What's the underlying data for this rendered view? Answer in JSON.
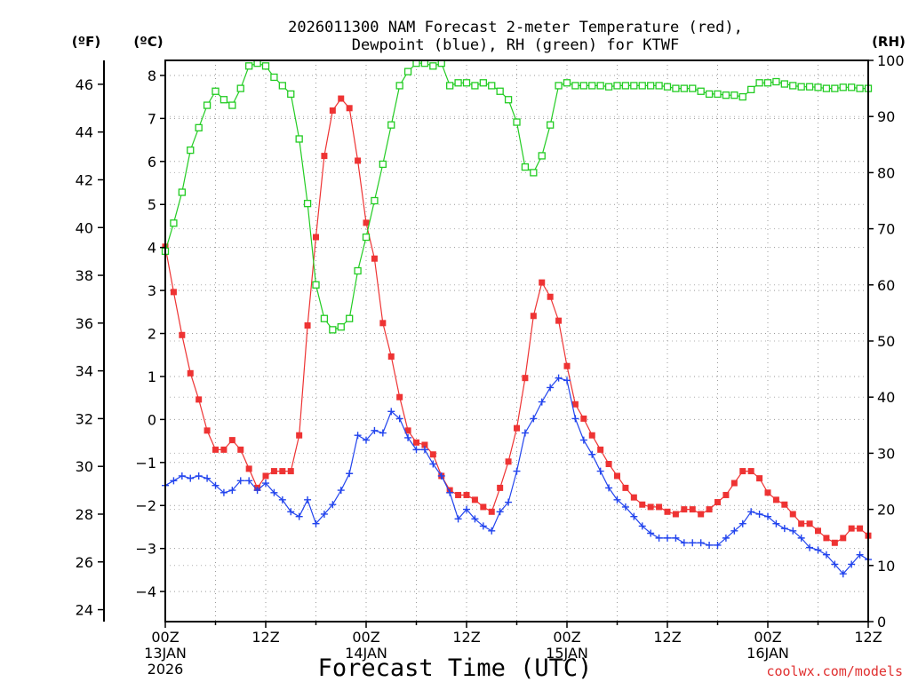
{
  "chart_data": {
    "type": "line",
    "title": {
      "line1": "2026011300 NAM Forecast 2-meter Temperature (red),",
      "line2": "Dewpoint (blue), RH (green) for KTWF"
    },
    "axes": {
      "left_f": {
        "label": "(ºF)",
        "ylim": [
          23.5,
          47
        ],
        "ticks": [
          "24",
          "26",
          "28",
          "30",
          "32",
          "34",
          "36",
          "38",
          "40",
          "42",
          "44",
          "46"
        ]
      },
      "left_c": {
        "label": "(ºC)",
        "ylim": [
          -4.7,
          8.35
        ],
        "ticks": [
          "-4",
          "-3",
          "-2",
          "-1",
          "0",
          "1",
          "2",
          "3",
          "4",
          "5",
          "6",
          "7",
          "8"
        ]
      },
      "right_rh": {
        "label": "(RH)",
        "ylim": [
          0,
          100
        ],
        "ticks": [
          "0",
          "10",
          "20",
          "30",
          "40",
          "50",
          "60",
          "70",
          "80",
          "90",
          "100"
        ]
      },
      "x": {
        "xlabel": "Forecast Time (UTC)",
        "range_hours": [
          0,
          84
        ],
        "ticks": [
          {
            "label": "00Z",
            "sub": "13JAN",
            "sub2": "2026"
          },
          {
            "label": "12Z",
            "sub": "",
            "sub2": ""
          },
          {
            "label": "00Z",
            "sub": "14JAN",
            "sub2": ""
          },
          {
            "label": "12Z",
            "sub": "",
            "sub2": ""
          },
          {
            "label": "00Z",
            "sub": "15JAN",
            "sub2": ""
          },
          {
            "label": "12Z",
            "sub": "",
            "sub2": ""
          },
          {
            "label": "00Z",
            "sub": "16JAN",
            "sub2": ""
          },
          {
            "label": "12Z",
            "sub": "",
            "sub2": ""
          }
        ]
      }
    },
    "grid": true,
    "series": [
      {
        "name": "Temperature",
        "units": "F",
        "color": "#ee3333",
        "marker": "filled-square",
        "x": [
          0,
          1,
          2,
          3,
          4,
          5,
          6,
          7,
          8,
          9,
          10,
          11,
          12,
          13,
          14,
          15,
          16,
          17,
          18,
          19,
          20,
          21,
          22,
          23,
          24,
          25,
          26,
          27,
          28,
          29,
          30,
          31,
          32,
          33,
          34,
          35,
          36,
          37,
          38,
          39,
          40,
          41,
          42,
          43,
          44,
          45,
          46,
          47,
          48,
          49,
          50,
          51,
          52,
          53,
          54,
          55,
          56,
          57,
          58,
          59,
          60,
          61,
          62,
          63,
          64,
          65,
          66,
          67,
          68,
          69,
          70,
          71,
          72,
          73,
          74,
          75,
          76,
          77,
          78,
          79,
          80,
          81,
          82,
          83,
          84
        ],
        "values": [
          39.2,
          37.3,
          35.5,
          33.9,
          32.8,
          31.5,
          30.7,
          30.7,
          31.1,
          30.7,
          29.9,
          29.1,
          29.6,
          29.8,
          29.8,
          29.8,
          31.3,
          35.9,
          39.6,
          43.0,
          44.9,
          45.4,
          45.0,
          42.8,
          40.2,
          38.7,
          36.0,
          34.6,
          32.9,
          31.5,
          31.0,
          30.9,
          30.5,
          29.6,
          29.0,
          28.8,
          28.8,
          28.6,
          28.3,
          28.1,
          29.1,
          30.2,
          31.6,
          33.7,
          36.3,
          37.7,
          37.1,
          36.1,
          34.2,
          32.6,
          32.0,
          31.3,
          30.7,
          30.1,
          29.6,
          29.1,
          28.7,
          28.4,
          28.3,
          28.3,
          28.1,
          28.0,
          28.2,
          28.2,
          28.0,
          28.2,
          28.5,
          28.8,
          29.3,
          29.8,
          29.8,
          29.5,
          28.9,
          28.6,
          28.4,
          28.0,
          27.6,
          27.6,
          27.3,
          27.0,
          26.8,
          27.0,
          27.4,
          27.4,
          27.1
        ]
      },
      {
        "name": "Dewpoint",
        "units": "F",
        "color": "#2244ee",
        "marker": "plus",
        "x": [
          0,
          1,
          2,
          3,
          4,
          5,
          6,
          7,
          8,
          9,
          10,
          11,
          12,
          13,
          14,
          15,
          16,
          17,
          18,
          19,
          20,
          21,
          22,
          23,
          24,
          25,
          26,
          27,
          28,
          29,
          30,
          31,
          32,
          33,
          34,
          35,
          36,
          37,
          38,
          39,
          40,
          41,
          42,
          43,
          44,
          45,
          46,
          47,
          48,
          49,
          50,
          51,
          52,
          53,
          54,
          55,
          56,
          57,
          58,
          59,
          60,
          61,
          62,
          63,
          64,
          65,
          66,
          67,
          68,
          69,
          70,
          71,
          72,
          73,
          74,
          75,
          76,
          77,
          78,
          79,
          80,
          81,
          82,
          83,
          84
        ],
        "values": [
          29.2,
          29.4,
          29.6,
          29.5,
          29.6,
          29.5,
          29.2,
          28.9,
          29.0,
          29.4,
          29.4,
          29.0,
          29.3,
          28.9,
          28.6,
          28.1,
          27.9,
          28.6,
          27.6,
          28.0,
          28.4,
          29.0,
          29.7,
          31.3,
          31.1,
          31.5,
          31.4,
          32.3,
          32.0,
          31.2,
          30.7,
          30.7,
          30.1,
          29.6,
          28.9,
          27.8,
          28.2,
          27.8,
          27.5,
          27.3,
          28.1,
          28.5,
          29.8,
          31.4,
          32.0,
          32.7,
          33.3,
          33.7,
          33.6,
          32.0,
          31.1,
          30.5,
          29.8,
          29.1,
          28.6,
          28.3,
          27.9,
          27.5,
          27.2,
          27.0,
          27.0,
          27.0,
          26.8,
          26.8,
          26.8,
          26.7,
          26.7,
          27.0,
          27.3,
          27.6,
          28.1,
          28.0,
          27.9,
          27.6,
          27.4,
          27.3,
          27.0,
          26.6,
          26.5,
          26.3,
          25.9,
          25.5,
          25.9,
          26.3,
          26.1
        ]
      },
      {
        "name": "RH",
        "units": "%",
        "color": "#22cc22",
        "marker": "open-square",
        "x": [
          0,
          1,
          2,
          3,
          4,
          5,
          6,
          7,
          8,
          9,
          10,
          11,
          12,
          13,
          14,
          15,
          16,
          17,
          18,
          19,
          20,
          21,
          22,
          23,
          24,
          25,
          26,
          27,
          28,
          29,
          30,
          31,
          32,
          33,
          34,
          35,
          36,
          37,
          38,
          39,
          40,
          41,
          42,
          43,
          44,
          45,
          46,
          47,
          48,
          49,
          50,
          51,
          52,
          53,
          54,
          55,
          56,
          57,
          58,
          59,
          60,
          61,
          62,
          63,
          64,
          65,
          66,
          67,
          68,
          69,
          70,
          71,
          72,
          73,
          74,
          75,
          76,
          77,
          78,
          79,
          80,
          81,
          82,
          83,
          84
        ],
        "values": [
          66.0,
          71.0,
          76.5,
          84.0,
          88.0,
          92.0,
          94.5,
          93.0,
          92.0,
          95.0,
          99.0,
          99.5,
          99.0,
          97.0,
          95.5,
          94.0,
          86.0,
          74.5,
          60.0,
          54.0,
          52.0,
          52.5,
          54.0,
          62.5,
          68.5,
          75.0,
          81.5,
          88.5,
          95.5,
          98.0,
          99.5,
          99.5,
          99.0,
          99.5,
          95.5,
          96.0,
          96.0,
          95.5,
          96.0,
          95.5,
          94.5,
          93.0,
          89.0,
          81.0,
          80.0,
          83.0,
          88.5,
          95.5,
          96.0,
          95.5,
          95.5,
          95.5,
          95.5,
          95.3,
          95.5,
          95.5,
          95.5,
          95.5,
          95.5,
          95.5,
          95.3,
          95.0,
          95.0,
          95.0,
          94.5,
          94.0,
          94.0,
          93.8,
          93.8,
          93.5,
          94.8,
          96.0,
          96.0,
          96.2,
          95.8,
          95.5,
          95.3,
          95.3,
          95.2,
          95.0,
          95.0,
          95.2,
          95.2,
          95.0,
          95.0
        ]
      }
    ],
    "credit": "coolwx.com/models"
  }
}
